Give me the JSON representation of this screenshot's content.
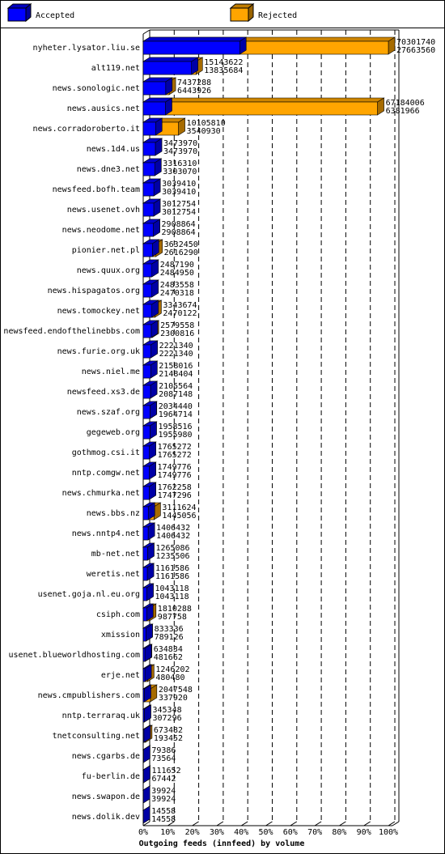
{
  "chart_data": {
    "type": "bar3d",
    "title": "Outgoing feeds (innfeed) by volume",
    "legend": [
      {
        "name": "Accepted",
        "color": "#0000ff"
      },
      {
        "name": "Rejected",
        "color": "#ffa500"
      }
    ],
    "categories": [
      "nyheter.lysator.liu.se",
      "alt119.net",
      "news.sonologic.net",
      "news.ausics.net",
      "news.corradoroberto.it",
      "news.1d4.us",
      "news.dne3.net",
      "newsfeed.bofh.team",
      "news.usenet.ovh",
      "news.neodome.net",
      "pionier.net.pl",
      "news.quux.org",
      "news.hispagatos.org",
      "news.tomockey.net",
      "newsfeed.endofthelinebbs.com",
      "news.furie.org.uk",
      "news.niel.me",
      "newsfeed.xs3.de",
      "news.szaf.org",
      "gegeweb.org",
      "gothmog.csi.it",
      "nntp.comgw.net",
      "news.chmurka.net",
      "news.bbs.nz",
      "news.nntp4.net",
      "mb-net.net",
      "weretis.net",
      "usenet.goja.nl.eu.org",
      "csiph.com",
      "xmission",
      "usenet.blueworldhosting.com",
      "erje.net",
      "news.cmpublishers.com",
      "nntp.terraraq.uk",
      "tnetconsulting.net",
      "news.cgarbs.de",
      "fu-berlin.de",
      "news.swapon.de",
      "news.dolik.dev"
    ],
    "values": [
      70301740,
      15143622,
      7437288,
      67184006,
      10105810,
      3473970,
      3316310,
      3039410,
      3012754,
      2908864,
      3632450,
      2487190,
      2483558,
      3343674,
      2579558,
      2221340,
      2158016,
      2105564,
      2034440,
      1958516,
      1765272,
      1749776,
      1762258,
      3111624,
      1406432,
      1265086,
      1161586,
      1043118,
      1810288,
      833336,
      634834,
      1246202,
      2047548,
      345348,
      673482,
      79386,
      111652,
      39924,
      14558
    ],
    "accepted": [
      27663560,
      13835684,
      6443926,
      6381966,
      3540930,
      3473970,
      3303070,
      3039410,
      3012754,
      2908864,
      2616290,
      2484950,
      2470318,
      2470122,
      2300816,
      2221340,
      2148404,
      2087148,
      1964714,
      1955980,
      1765272,
      1749776,
      1747296,
      1445056,
      1406432,
      1235506,
      1161586,
      1043118,
      987758,
      789126,
      481662,
      480480,
      337920,
      307296,
      193452,
      73564,
      67442,
      39924,
      14558
    ],
    "xlim": [
      0,
      70301740
    ],
    "xticks": [
      {
        "value": 0,
        "label": "0%"
      },
      {
        "value": 7030174,
        "label": "10%"
      },
      {
        "value": 14060348,
        "label": "20%"
      },
      {
        "value": 21090522,
        "label": "30%"
      },
      {
        "value": 28120696,
        "label": "40%"
      },
      {
        "value": 35150870,
        "label": "50%"
      },
      {
        "value": 42181044,
        "label": "60%"
      },
      {
        "value": 49211218,
        "label": "70%"
      },
      {
        "value": 56241392,
        "label": "80%"
      },
      {
        "value": 63271566,
        "label": "90%"
      },
      {
        "value": 70301740,
        "label": "100%"
      }
    ],
    "grid": true
  }
}
